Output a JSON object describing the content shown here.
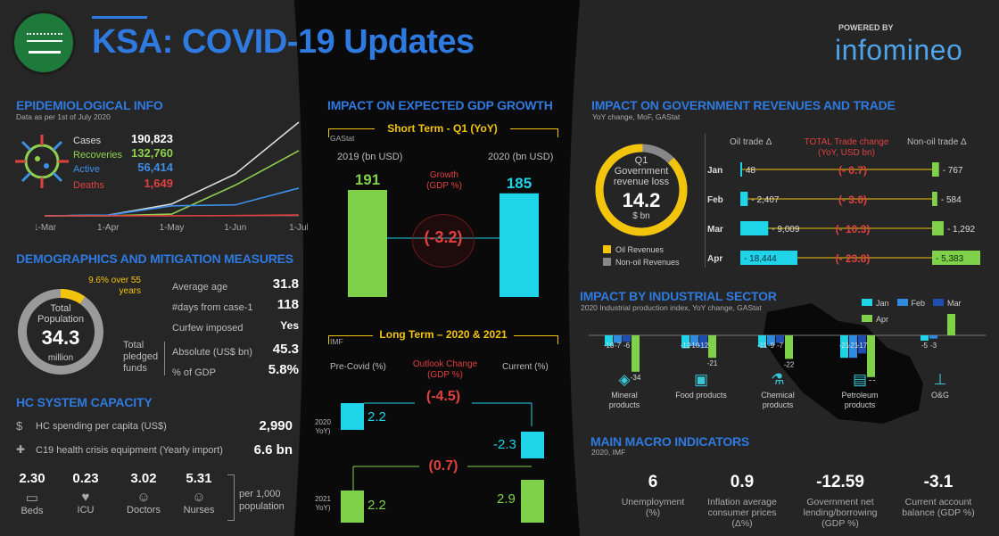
{
  "header": {
    "title": "KSA: COVID-19 Updates",
    "powered_by": "POWERED BY",
    "brand": "infomineo"
  },
  "epi": {
    "title": "EPIDEMIOLOGICAL INFO",
    "sub": "Data as per 1st of July 2020",
    "stats": [
      {
        "label": "Cases",
        "value": "190,823",
        "color": "#dddddd"
      },
      {
        "label": "Recoveries",
        "value": "132,760",
        "color": "#8fd14f"
      },
      {
        "label": "Active",
        "value": "56,414",
        "color": "#3d8fe8"
      },
      {
        "label": "Deaths",
        "value": "1,649",
        "color": "#e04040"
      }
    ],
    "xticks": [
      "1-Mar",
      "1-Apr",
      "1-May",
      "1-Jun",
      "1-Jul"
    ]
  },
  "demo": {
    "title": "DEMOGRAPHICS AND MITIGATION MEASURES",
    "total_label": "Total Population",
    "total_value": "34.3",
    "total_unit": "million",
    "over55": "9.6% over 55 years",
    "rows": [
      {
        "label": "Average age",
        "value": "31.8"
      },
      {
        "label": "#days from case-1",
        "value": "118"
      },
      {
        "label": "Curfew imposed",
        "value": "Yes"
      }
    ],
    "funds_label": "Total pledged funds",
    "funds": [
      {
        "label": "Absolute (US$ bn)",
        "value": "45.3"
      },
      {
        "label": "% of GDP",
        "value": "5.8%"
      }
    ]
  },
  "hc": {
    "title": "HC SYSTEM CAPACITY",
    "spending_label": "HC spending per capita (US$)",
    "spending_value": "2,990",
    "equip_label": "C19 health crisis equipment (Yearly import)",
    "equip_value": "6.6 bn",
    "items": [
      {
        "value": "2.30",
        "label": "Beds"
      },
      {
        "value": "0.23",
        "label": "ICU"
      },
      {
        "value": "3.02",
        "label": "Doctors"
      },
      {
        "value": "5.31",
        "label": "Nurses"
      }
    ],
    "per": "per 1,000 population"
  },
  "gdp": {
    "title": "IMPACT ON EXPECTED GDP GROWTH",
    "short_label": "Short Term - Q1 (YoY)",
    "gastat": "GAStat",
    "y2019": "2019 (bn USD)",
    "y2020": "2020 (bn USD)",
    "growth_label": "Growth (GDP %)",
    "growth_value": "(-3.2)",
    "v2019": "191",
    "v2020": "185",
    "long_label": "Long Term – 2020 & 2021",
    "imf": "IMF",
    "pre": "Pre-Covid (%)",
    "outlook": "Outlook Change (GDP %)",
    "current": "Current (%)",
    "row2020": {
      "year": "2020 YoY)",
      "pre": "2.2",
      "change": "(-4.5)",
      "cur": "-2.3"
    },
    "row2021": {
      "year": "2021 YoY)",
      "pre": "2.2",
      "change": "(0.7)",
      "cur": "2.9"
    }
  },
  "rev": {
    "title": "IMPACT ON GOVERNMENT REVENUES AND TRADE",
    "sub": "YoY change, MoF, GAStat",
    "q1": "Q1",
    "donut_label": "Government revenue loss",
    "donut_value": "14.2",
    "donut_unit": "$ bn",
    "legend": [
      {
        "label": "Oil Revenues",
        "color": "#f2c40c"
      },
      {
        "label": "Non-oil Revenues",
        "color": "#888888"
      }
    ],
    "col_oil": "Oil trade Δ",
    "col_total": "TOTAL Trade change (YoY, USD bn)",
    "col_nonoil": "Non-oil trade Δ",
    "rows": [
      {
        "m": "Jan",
        "oil": "48",
        "tot": "(- 0.7)",
        "non": "- 767"
      },
      {
        "m": "Feb",
        "oil": "- 2,407",
        "tot": "(- 3.0)",
        "non": "- 584"
      },
      {
        "m": "Mar",
        "oil": "- 9,009",
        "tot": "(- 10.3)",
        "non": "- 1,292"
      },
      {
        "m": "Apr",
        "oil": "- 18,444",
        "tot": "(- 23.8)",
        "non": "- 5,383"
      }
    ]
  },
  "ind": {
    "title": "IMPACT BY INDUSTRIAL SECTOR",
    "sub": "2020 Industrial production index, YoY change, GAStat",
    "sectors": [
      "Mineral products",
      "Food products",
      "Chemical products",
      "Petroleum products",
      "O&G"
    ]
  },
  "macro": {
    "title": "MAIN MACRO INDICATORS",
    "sub": "2020, IMF",
    "items": [
      {
        "value": "6",
        "label": "Unemployment (%)"
      },
      {
        "value": "0.9",
        "label": "Inflation average consumer prices (Δ%)"
      },
      {
        "value": "-12.59",
        "label": "Government net lending/borrowing (GDP %)"
      },
      {
        "value": "-3.1",
        "label": "Current account balance (GDP %)"
      }
    ]
  },
  "chart_data": [
    {
      "type": "line",
      "title": "",
      "x": [
        "1-Mar",
        "1-Apr",
        "1-May",
        "1-Jun",
        "1-Jul"
      ],
      "series": [
        {
          "name": "Cases",
          "values": [
            1,
            1563,
            24097,
            85261,
            190823
          ],
          "color": "#dddddd"
        },
        {
          "name": "Recoveries",
          "values": [
            0,
            142,
            3555,
            62442,
            132760
          ],
          "color": "#8fd14f"
        },
        {
          "name": "Active",
          "values": [
            1,
            1411,
            20377,
            22301,
            56414
          ],
          "color": "#3d8fe8"
        },
        {
          "name": "Deaths",
          "values": [
            0,
            10,
            169,
            503,
            1649
          ],
          "color": "#e04040"
        }
      ]
    },
    {
      "type": "pie",
      "title": "Total Population",
      "categories": [
        "over 55 years",
        "other"
      ],
      "values": [
        9.6,
        90.4
      ],
      "colors": [
        "#f2c40c",
        "#9a9a9a"
      ]
    },
    {
      "type": "bar",
      "title": "Short Term - Q1 (YoY)",
      "categories": [
        "2019",
        "2020"
      ],
      "values": [
        191,
        185
      ],
      "colors": [
        "#7fd14a",
        "#1fd3e8"
      ]
    },
    {
      "type": "pie",
      "title": "Government revenue loss",
      "categories": [
        "Oil Revenues",
        "Non-oil Revenues"
      ],
      "values": [
        88,
        12
      ],
      "colors": [
        "#f2c40c",
        "#888888"
      ]
    },
    {
      "type": "bar",
      "title": "Oil trade Δ",
      "categories": [
        "Jan",
        "Feb",
        "Mar",
        "Apr"
      ],
      "values": [
        48,
        -2407,
        -9009,
        -18444
      ]
    },
    {
      "type": "bar",
      "title": "Non-oil trade Δ",
      "categories": [
        "Jan",
        "Feb",
        "Mar",
        "Apr"
      ],
      "values": [
        -767,
        -584,
        -1292,
        -5383
      ]
    },
    {
      "type": "bar",
      "title": "IMPACT BY INDUSTRIAL SECTOR",
      "categories": [
        "Mineral products",
        "Food products",
        "Chemical products",
        "Petroleum products",
        "O&G"
      ],
      "series": [
        {
          "name": "Jan",
          "values": [
            -10,
            -12,
            -11,
            -21,
            -5
          ],
          "color": "#1fd3e8"
        },
        {
          "name": "Feb",
          "values": [
            -7,
            -10,
            -9,
            -21,
            -3
          ],
          "color": "#2f8be0"
        },
        {
          "name": "Mar",
          "values": [
            -6,
            -12,
            -7,
            -17,
            0
          ],
          "color": "#1e4fb0"
        },
        {
          "name": "Apr",
          "values": [
            -34,
            -21,
            -22,
            -39,
            23
          ],
          "color": "#7fd14a"
        }
      ]
    }
  ]
}
